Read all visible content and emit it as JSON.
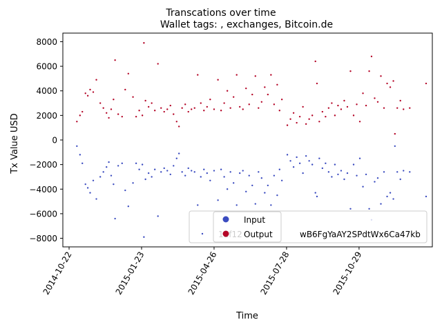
{
  "chart_data": {
    "type": "scatter",
    "title": "Transcations over time",
    "subtitle": "Wallet tags: , exchanges, Bitcoin.de",
    "xlabel": "Time",
    "ylabel": "Tx Value USD",
    "x_type": "date",
    "xlim": [
      "2014-10-14",
      "2016-01-31"
    ],
    "ylim": [
      -8700,
      8700
    ],
    "x_ticks": [
      "2014-10-22",
      "2015-01-23",
      "2015-04-26",
      "2015-07-28",
      "2015-10-29"
    ],
    "y_ticks": [
      -8000,
      -6000,
      -4000,
      -2000,
      0,
      2000,
      4000,
      6000,
      8000
    ],
    "y_tick_labels": [
      "−8000",
      "−6000",
      "−4000",
      "−2000",
      "0",
      "2000",
      "4000",
      "6000",
      "8000"
    ],
    "legend": {
      "position": "lower-right",
      "wallet_marker_text": "1Ef12...",
      "wallet_label": "1Ef12cwB6FgYaAY2SPdtWx6Ca47kb",
      "visible_wallet_label_parts": [
        "1Ef12",
        "wB6FgYaAY2SPdtWx6Ca47kb"
      ],
      "entries": [
        "Input",
        "Output"
      ]
    },
    "colors": {
      "input": "#3b4cc0",
      "output": "#b40426",
      "wallet": "#3b4cc0"
    },
    "series": [
      {
        "name": "Output",
        "color": "#b40426",
        "points": [
          {
            "x": "2014-11-01",
            "y": 1500
          },
          {
            "x": "2014-11-05",
            "y": 2000
          },
          {
            "x": "2014-11-08",
            "y": 2300
          },
          {
            "x": "2014-11-12",
            "y": 3800
          },
          {
            "x": "2014-11-15",
            "y": 3600
          },
          {
            "x": "2014-11-18",
            "y": 4100
          },
          {
            "x": "2014-11-22",
            "y": 3900
          },
          {
            "x": "2014-11-26",
            "y": 4900
          },
          {
            "x": "2014-12-01",
            "y": 3000
          },
          {
            "x": "2014-12-05",
            "y": 2600
          },
          {
            "x": "2014-12-09",
            "y": 2200
          },
          {
            "x": "2014-12-12",
            "y": 1800
          },
          {
            "x": "2014-12-15",
            "y": 2500
          },
          {
            "x": "2014-12-18",
            "y": 3300
          },
          {
            "x": "2014-12-20",
            "y": 6500
          },
          {
            "x": "2014-12-24",
            "y": 2100
          },
          {
            "x": "2014-12-29",
            "y": 1900
          },
          {
            "x": "2015-01-02",
            "y": 4100
          },
          {
            "x": "2015-01-06",
            "y": 5400
          },
          {
            "x": "2015-01-12",
            "y": 3500
          },
          {
            "x": "2015-01-16",
            "y": 1900
          },
          {
            "x": "2015-01-20",
            "y": 2400
          },
          {
            "x": "2015-01-24",
            "y": 2000
          },
          {
            "x": "2015-01-26",
            "y": 7900
          },
          {
            "x": "2015-01-28",
            "y": 3200
          },
          {
            "x": "2015-02-01",
            "y": 2700
          },
          {
            "x": "2015-02-05",
            "y": 3000
          },
          {
            "x": "2015-02-09",
            "y": 2400
          },
          {
            "x": "2015-02-13",
            "y": 6200
          },
          {
            "x": "2015-02-17",
            "y": 2600
          },
          {
            "x": "2015-02-21",
            "y": 2300
          },
          {
            "x": "2015-02-25",
            "y": 2500
          },
          {
            "x": "2015-03-01",
            "y": 2800
          },
          {
            "x": "2015-03-05",
            "y": 2100
          },
          {
            "x": "2015-03-09",
            "y": 1500
          },
          {
            "x": "2015-03-12",
            "y": 1100
          },
          {
            "x": "2015-03-16",
            "y": 2600
          },
          {
            "x": "2015-03-20",
            "y": 2900
          },
          {
            "x": "2015-03-24",
            "y": 2300
          },
          {
            "x": "2015-03-28",
            "y": 2500
          },
          {
            "x": "2015-04-01",
            "y": 2600
          },
          {
            "x": "2015-04-05",
            "y": 5300
          },
          {
            "x": "2015-04-09",
            "y": 3000
          },
          {
            "x": "2015-04-13",
            "y": 2400
          },
          {
            "x": "2015-04-17",
            "y": 2700
          },
          {
            "x": "2015-04-21",
            "y": 3300
          },
          {
            "x": "2015-04-26",
            "y": 2500
          },
          {
            "x": "2015-05-01",
            "y": 4900
          },
          {
            "x": "2015-05-05",
            "y": 2400
          },
          {
            "x": "2015-05-09",
            "y": 3000
          },
          {
            "x": "2015-05-13",
            "y": 4000
          },
          {
            "x": "2015-05-17",
            "y": 2600
          },
          {
            "x": "2015-05-21",
            "y": 3500
          },
          {
            "x": "2015-05-25",
            "y": 5300
          },
          {
            "x": "2015-05-29",
            "y": 2700
          },
          {
            "x": "2015-06-02",
            "y": 2500
          },
          {
            "x": "2015-06-06",
            "y": 4200
          },
          {
            "x": "2015-06-10",
            "y": 2900
          },
          {
            "x": "2015-06-14",
            "y": 3700
          },
          {
            "x": "2015-06-18",
            "y": 5200
          },
          {
            "x": "2015-06-22",
            "y": 2600
          },
          {
            "x": "2015-06-26",
            "y": 3100
          },
          {
            "x": "2015-06-30",
            "y": 4300
          },
          {
            "x": "2015-07-04",
            "y": 3700
          },
          {
            "x": "2015-07-08",
            "y": 5300
          },
          {
            "x": "2015-07-12",
            "y": 2900
          },
          {
            "x": "2015-07-16",
            "y": 4500
          },
          {
            "x": "2015-07-19",
            "y": 2400
          },
          {
            "x": "2015-07-22",
            "y": 3300
          },
          {
            "x": "2015-07-29",
            "y": 1200
          },
          {
            "x": "2015-08-02",
            "y": 1700
          },
          {
            "x": "2015-08-06",
            "y": 2200
          },
          {
            "x": "2015-08-10",
            "y": 1400
          },
          {
            "x": "2015-08-14",
            "y": 1900
          },
          {
            "x": "2015-08-18",
            "y": 2700
          },
          {
            "x": "2015-08-22",
            "y": 1300
          },
          {
            "x": "2015-08-26",
            "y": 1700
          },
          {
            "x": "2015-08-30",
            "y": 2000
          },
          {
            "x": "2015-09-03",
            "y": 6400
          },
          {
            "x": "2015-09-05",
            "y": 4600
          },
          {
            "x": "2015-09-08",
            "y": 1500
          },
          {
            "x": "2015-09-12",
            "y": 2300
          },
          {
            "x": "2015-09-16",
            "y": 1900
          },
          {
            "x": "2015-09-20",
            "y": 2600
          },
          {
            "x": "2015-09-24",
            "y": 3000
          },
          {
            "x": "2015-09-28",
            "y": 2000
          },
          {
            "x": "2015-10-02",
            "y": 2800
          },
          {
            "x": "2015-10-06",
            "y": 2500
          },
          {
            "x": "2015-10-10",
            "y": 3200
          },
          {
            "x": "2015-10-14",
            "y": 2700
          },
          {
            "x": "2015-10-18",
            "y": 5600
          },
          {
            "x": "2015-10-22",
            "y": 2000
          },
          {
            "x": "2015-10-26",
            "y": 2900
          },
          {
            "x": "2015-10-30",
            "y": 1500
          },
          {
            "x": "2015-11-03",
            "y": 3800
          },
          {
            "x": "2015-11-07",
            "y": 2800
          },
          {
            "x": "2015-11-11",
            "y": 5600
          },
          {
            "x": "2015-11-14",
            "y": 6800
          },
          {
            "x": "2015-11-18",
            "y": 3400
          },
          {
            "x": "2015-11-22",
            "y": 3100
          },
          {
            "x": "2015-11-26",
            "y": 5200
          },
          {
            "x": "2015-11-30",
            "y": 2600
          },
          {
            "x": "2015-12-04",
            "y": 4600
          },
          {
            "x": "2015-12-08",
            "y": 4300
          },
          {
            "x": "2015-12-12",
            "y": 4800
          },
          {
            "x": "2015-12-14",
            "y": 500
          },
          {
            "x": "2015-12-17",
            "y": 2600
          },
          {
            "x": "2015-12-21",
            "y": 3200
          },
          {
            "x": "2015-12-25",
            "y": 2500
          },
          {
            "x": "2016-01-02",
            "y": 2600
          },
          {
            "x": "2016-01-23",
            "y": 4600
          }
        ]
      },
      {
        "name": "Input",
        "color": "#3b4cc0",
        "points": [
          {
            "x": "2014-11-01",
            "y": -500
          },
          {
            "x": "2014-11-05",
            "y": -1200
          },
          {
            "x": "2014-11-08",
            "y": -1900
          },
          {
            "x": "2014-11-12",
            "y": -3600
          },
          {
            "x": "2014-11-15",
            "y": -3900
          },
          {
            "x": "2014-11-18",
            "y": -4300
          },
          {
            "x": "2014-11-22",
            "y": -3300
          },
          {
            "x": "2014-11-26",
            "y": -4800
          },
          {
            "x": "2014-12-01",
            "y": -3000
          },
          {
            "x": "2014-12-05",
            "y": -2600
          },
          {
            "x": "2014-12-09",
            "y": -2200
          },
          {
            "x": "2014-12-12",
            "y": -1800
          },
          {
            "x": "2014-12-15",
            "y": -2900
          },
          {
            "x": "2014-12-18",
            "y": -3600
          },
          {
            "x": "2014-12-20",
            "y": -6400
          },
          {
            "x": "2014-12-24",
            "y": -2100
          },
          {
            "x": "2014-12-29",
            "y": -1900
          },
          {
            "x": "2015-01-02",
            "y": -4100
          },
          {
            "x": "2015-01-06",
            "y": -5400
          },
          {
            "x": "2015-01-12",
            "y": -3500
          },
          {
            "x": "2015-01-16",
            "y": -1900
          },
          {
            "x": "2015-01-20",
            "y": -2400
          },
          {
            "x": "2015-01-24",
            "y": -2000
          },
          {
            "x": "2015-01-26",
            "y": -7900
          },
          {
            "x": "2015-01-28",
            "y": -3200
          },
          {
            "x": "2015-02-01",
            "y": -2700
          },
          {
            "x": "2015-02-05",
            "y": -3000
          },
          {
            "x": "2015-02-09",
            "y": -2400
          },
          {
            "x": "2015-02-13",
            "y": -6200
          },
          {
            "x": "2015-02-17",
            "y": -2600
          },
          {
            "x": "2015-02-21",
            "y": -2300
          },
          {
            "x": "2015-02-25",
            "y": -2500
          },
          {
            "x": "2015-03-01",
            "y": -2800
          },
          {
            "x": "2015-03-05",
            "y": -2100
          },
          {
            "x": "2015-03-09",
            "y": -1500
          },
          {
            "x": "2015-03-12",
            "y": -1100
          },
          {
            "x": "2015-03-16",
            "y": -2600
          },
          {
            "x": "2015-03-20",
            "y": -2900
          },
          {
            "x": "2015-03-24",
            "y": -2300
          },
          {
            "x": "2015-03-28",
            "y": -2500
          },
          {
            "x": "2015-04-01",
            "y": -2600
          },
          {
            "x": "2015-04-05",
            "y": -5300
          },
          {
            "x": "2015-04-09",
            "y": -3000
          },
          {
            "x": "2015-04-13",
            "y": -2400
          },
          {
            "x": "2015-04-17",
            "y": -2700
          },
          {
            "x": "2015-04-21",
            "y": -3300
          },
          {
            "x": "2015-04-26",
            "y": -2500
          },
          {
            "x": "2015-05-01",
            "y": -4900
          },
          {
            "x": "2015-05-05",
            "y": -2400
          },
          {
            "x": "2015-05-09",
            "y": -3000
          },
          {
            "x": "2015-05-13",
            "y": -4000
          },
          {
            "x": "2015-05-17",
            "y": -2600
          },
          {
            "x": "2015-05-21",
            "y": -3500
          },
          {
            "x": "2015-05-25",
            "y": -5300
          },
          {
            "x": "2015-05-29",
            "y": -2700
          },
          {
            "x": "2015-06-02",
            "y": -2500
          },
          {
            "x": "2015-06-06",
            "y": -4200
          },
          {
            "x": "2015-06-10",
            "y": -2900
          },
          {
            "x": "2015-06-14",
            "y": -3700
          },
          {
            "x": "2015-06-18",
            "y": -5200
          },
          {
            "x": "2015-06-22",
            "y": -2600
          },
          {
            "x": "2015-06-26",
            "y": -3100
          },
          {
            "x": "2015-06-30",
            "y": -4300
          },
          {
            "x": "2015-07-04",
            "y": -3700
          },
          {
            "x": "2015-07-08",
            "y": -5300
          },
          {
            "x": "2015-07-12",
            "y": -2900
          },
          {
            "x": "2015-07-16",
            "y": -4500
          },
          {
            "x": "2015-07-19",
            "y": -2400
          },
          {
            "x": "2015-07-22",
            "y": -3300
          },
          {
            "x": "2015-07-29",
            "y": -1200
          },
          {
            "x": "2015-08-02",
            "y": -1700
          },
          {
            "x": "2015-08-06",
            "y": -2200
          },
          {
            "x": "2015-08-10",
            "y": -1400
          },
          {
            "x": "2015-08-14",
            "y": -1900
          },
          {
            "x": "2015-08-18",
            "y": -2700
          },
          {
            "x": "2015-08-22",
            "y": -1300
          },
          {
            "x": "2015-08-26",
            "y": -1700
          },
          {
            "x": "2015-08-30",
            "y": -2000
          },
          {
            "x": "2015-09-03",
            "y": -4300
          },
          {
            "x": "2015-09-05",
            "y": -4600
          },
          {
            "x": "2015-09-08",
            "y": -1500
          },
          {
            "x": "2015-09-12",
            "y": -2300
          },
          {
            "x": "2015-09-16",
            "y": -1900
          },
          {
            "x": "2015-09-20",
            "y": -2600
          },
          {
            "x": "2015-09-24",
            "y": -3000
          },
          {
            "x": "2015-09-28",
            "y": -2000
          },
          {
            "x": "2015-10-02",
            "y": -2800
          },
          {
            "x": "2015-10-06",
            "y": -2500
          },
          {
            "x": "2015-10-10",
            "y": -3200
          },
          {
            "x": "2015-10-14",
            "y": -2700
          },
          {
            "x": "2015-10-18",
            "y": -5600
          },
          {
            "x": "2015-10-22",
            "y": -2000
          },
          {
            "x": "2015-10-26",
            "y": -2900
          },
          {
            "x": "2015-10-30",
            "y": -1500
          },
          {
            "x": "2015-11-03",
            "y": -3800
          },
          {
            "x": "2015-11-07",
            "y": -2800
          },
          {
            "x": "2015-11-11",
            "y": -5600
          },
          {
            "x": "2015-11-14",
            "y": -6500
          },
          {
            "x": "2015-11-18",
            "y": -3400
          },
          {
            "x": "2015-11-22",
            "y": -3100
          },
          {
            "x": "2015-11-26",
            "y": -5200
          },
          {
            "x": "2015-11-30",
            "y": -2600
          },
          {
            "x": "2015-12-04",
            "y": -4600
          },
          {
            "x": "2015-12-08",
            "y": -4300
          },
          {
            "x": "2015-12-12",
            "y": -4800
          },
          {
            "x": "2015-12-14",
            "y": -500
          },
          {
            "x": "2015-12-17",
            "y": -2600
          },
          {
            "x": "2015-12-21",
            "y": -3200
          },
          {
            "x": "2015-12-25",
            "y": -2500
          },
          {
            "x": "2016-01-02",
            "y": -2600
          },
          {
            "x": "2016-01-23",
            "y": -4600
          }
        ]
      }
    ]
  }
}
